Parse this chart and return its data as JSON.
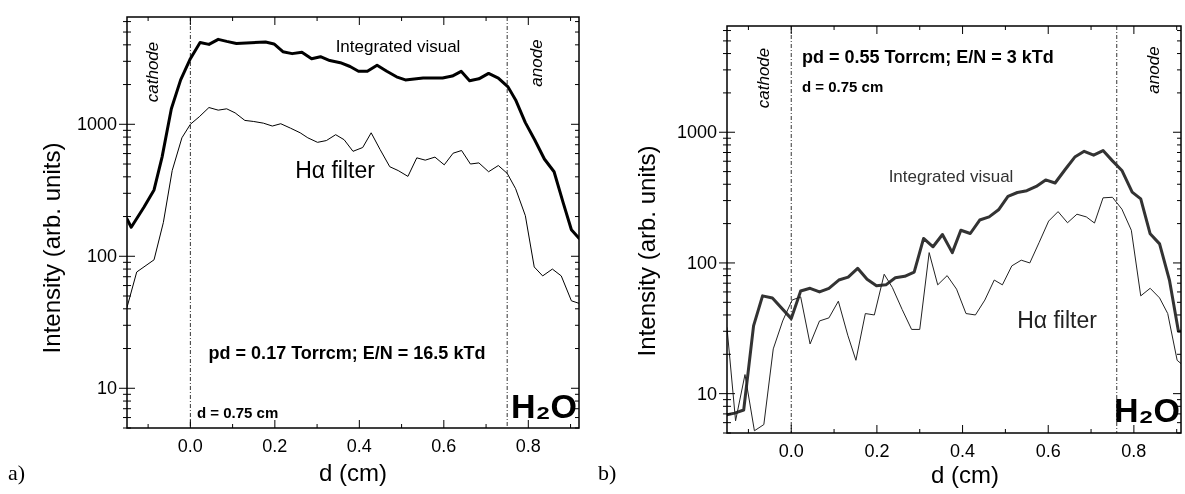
{
  "chart_data": [
    {
      "type": "line",
      "xlabel": "d (cm)",
      "ylabel": "Intensity  (arb. units)",
      "log": "y",
      "xlim": [
        -0.15,
        0.92
      ],
      "ylim": [
        5,
        6500
      ],
      "xticks": [
        {
          "value": -0.1,
          "label": null
        },
        {
          "value": 0,
          "label": "0.0"
        },
        {
          "value": 0.1,
          "label": null
        },
        {
          "value": 0.2,
          "label": "0.2"
        },
        {
          "value": 0.3,
          "label": null
        },
        {
          "value": 0.4,
          "label": "0.4"
        },
        {
          "value": 0.5,
          "label": null
        },
        {
          "value": 0.6,
          "label": "0.6"
        },
        {
          "value": 0.7,
          "label": null
        },
        {
          "value": 0.8,
          "label": "0.8"
        },
        {
          "value": 0.9,
          "label": null
        }
      ],
      "yticks": [
        {
          "value": 5,
          "label": null
        },
        {
          "value": 6,
          "label": null
        },
        {
          "value": 7,
          "label": null
        },
        {
          "value": 8,
          "label": null
        },
        {
          "value": 9,
          "label": null
        },
        10,
        {
          "value": 20,
          "label": null
        },
        {
          "value": 30,
          "label": null
        },
        {
          "value": 40,
          "label": null
        },
        {
          "value": 50,
          "label": null
        },
        {
          "value": 60,
          "label": null
        },
        {
          "value": 70,
          "label": null
        },
        {
          "value": 80,
          "label": null
        },
        {
          "value": 90,
          "label": null
        },
        100,
        {
          "value": 200,
          "label": null
        },
        {
          "value": 300,
          "label": null
        },
        {
          "value": 400,
          "label": null
        },
        {
          "value": 500,
          "label": null
        },
        {
          "value": 600,
          "label": null
        },
        {
          "value": 700,
          "label": null
        },
        {
          "value": 800,
          "label": null
        },
        {
          "value": 900,
          "label": null
        },
        1000,
        {
          "value": 2000,
          "label": null
        },
        {
          "value": 3000,
          "label": null
        },
        {
          "value": 4000,
          "label": null
        },
        {
          "value": 5000,
          "label": null
        },
        {
          "value": 6000,
          "label": null
        }
      ],
      "grid": false,
      "marker": "none",
      "line_style": "solid",
      "ref_lines": [
        {
          "axis": "x",
          "value": 0,
          "color": "#000000",
          "line_style": "dashed"
        },
        {
          "axis": "x",
          "value": 0.75,
          "color": "#000000",
          "line_style": "dashed"
        }
      ],
      "annotations": [
        "cathode",
        "anode",
        "pd = 0.17 Torrcm; E/N = 16.5 kTd",
        "d = 0.75 cm",
        "H₂O",
        "a)"
      ],
      "series": [
        {
          "name": "Integrated visual",
          "color": "#000000",
          "x": [
            -0.15,
            -0.14,
            -0.11,
            -0.086,
            -0.067,
            -0.045,
            -0.023,
            0,
            0.023,
            0.044,
            0.066,
            0.086,
            0.109,
            0.178,
            0.198,
            0.219,
            0.241,
            0.264,
            0.287,
            0.308,
            0.33,
            0.355,
            0.378,
            0.398,
            0.419,
            0.442,
            0.465,
            0.488,
            0.509,
            0.551,
            0.597,
            0.62,
            0.641,
            0.661,
            0.683,
            0.706,
            0.729,
            0.752,
            0.77,
            0.793,
            0.815,
            0.838,
            0.861,
            0.883,
            0.902,
            0.92
          ],
          "values": [
            192,
            166,
            235,
            318,
            564,
            1310,
            2170,
            3140,
            4170,
            4030,
            4400,
            4250,
            4100,
            4200,
            4060,
            3550,
            3430,
            3520,
            3140,
            3250,
            3040,
            2930,
            2740,
            2520,
            2520,
            2800,
            2520,
            2290,
            2170,
            2240,
            2240,
            2320,
            2520,
            2140,
            2210,
            2430,
            2240,
            1920,
            1530,
            1030,
            764,
            546,
            437,
            252,
            159,
            137
          ]
        },
        {
          "name": "Hα filter",
          "color": "#000000",
          "x": [
            -0.15,
            -0.127,
            -0.086,
            -0.064,
            -0.043,
            -0.02,
            0,
            0.021,
            0.044,
            0.066,
            0.086,
            0.106,
            0.129,
            0.15,
            0.173,
            0.194,
            0.214,
            0.237,
            0.26,
            0.278,
            0.301,
            0.322,
            0.344,
            0.364,
            0.385,
            0.408,
            0.428,
            0.449,
            0.472,
            0.492,
            0.515,
            0.536,
            0.556,
            0.579,
            0.601,
            0.622,
            0.642,
            0.663,
            0.683,
            0.706,
            0.729,
            0.75,
            0.77,
            0.793,
            0.814,
            0.834,
            0.857,
            0.878,
            0.902,
            0.92
          ],
          "values": [
            41,
            76,
            94,
            180,
            446,
            790,
            1000,
            1140,
            1340,
            1280,
            1310,
            1220,
            1070,
            1050,
            1020,
            970,
            1010,
            935,
            862,
            790,
            730,
            753,
            834,
            764,
            624,
            667,
            862,
            645,
            477,
            446,
            403,
            557,
            535,
            564,
            493,
            604,
            633,
            500,
            510,
            437,
            487,
            425,
            325,
            203,
            83,
            71,
            80,
            71,
            46,
            44
          ]
        }
      ]
    },
    {
      "type": "line",
      "xlabel": "d (cm)",
      "ylabel": "Intensity  (arb. units)",
      "log": "y",
      "xlim": [
        -0.15,
        0.91
      ],
      "ylim": [
        5,
        6500
      ],
      "xticks": [
        {
          "value": -0.1,
          "label": null
        },
        {
          "value": 0,
          "label": "0.0"
        },
        {
          "value": 0.1,
          "label": null
        },
        {
          "value": 0.2,
          "label": "0.2"
        },
        {
          "value": 0.3,
          "label": null
        },
        {
          "value": 0.4,
          "label": "0.4"
        },
        {
          "value": 0.5,
          "label": null
        },
        {
          "value": 0.6,
          "label": "0.6"
        },
        {
          "value": 0.7,
          "label": null
        },
        {
          "value": 0.8,
          "label": "0.8"
        },
        {
          "value": 0.9,
          "label": null
        }
      ],
      "yticks": [
        {
          "value": 5,
          "label": null
        },
        {
          "value": 6,
          "label": null
        },
        {
          "value": 7,
          "label": null
        },
        {
          "value": 8,
          "label": null
        },
        {
          "value": 9,
          "label": null
        },
        10,
        {
          "value": 20,
          "label": null
        },
        {
          "value": 30,
          "label": null
        },
        {
          "value": 40,
          "label": null
        },
        {
          "value": 50,
          "label": null
        },
        {
          "value": 60,
          "label": null
        },
        {
          "value": 70,
          "label": null
        },
        {
          "value": 80,
          "label": null
        },
        {
          "value": 90,
          "label": null
        },
        100,
        {
          "value": 200,
          "label": null
        },
        {
          "value": 300,
          "label": null
        },
        {
          "value": 400,
          "label": null
        },
        {
          "value": 500,
          "label": null
        },
        {
          "value": 600,
          "label": null
        },
        {
          "value": 700,
          "label": null
        },
        {
          "value": 800,
          "label": null
        },
        {
          "value": 900,
          "label": null
        },
        1000,
        {
          "value": 2000,
          "label": null
        },
        {
          "value": 3000,
          "label": null
        },
        {
          "value": 4000,
          "label": null
        },
        {
          "value": 5000,
          "label": null
        },
        {
          "value": 6000,
          "label": null
        }
      ],
      "grid": false,
      "marker": "none",
      "line_style": "solid",
      "ref_lines": [
        {
          "axis": "x",
          "value": 0,
          "color": "#000000",
          "line_style": "dashed"
        },
        {
          "axis": "x",
          "value": 0.76,
          "color": "#000000",
          "line_style": "dashed"
        }
      ],
      "annotations": [
        "cathode",
        "anode",
        "pd = 0.55 Torrcm; E/N = 3 kTd",
        "d = 0.75 cm",
        "H₂O",
        "b)"
      ],
      "series": [
        {
          "name": "Integrated visual",
          "color": "#333333",
          "x": [
            -0.15,
            -0.132,
            -0.111,
            -0.088,
            -0.067,
            -0.044,
            0,
            0.022,
            0.044,
            0.066,
            0.088,
            0.111,
            0.133,
            0.155,
            0.177,
            0.199,
            0.221,
            0.243,
            0.265,
            0.287,
            0.309,
            0.331,
            0.353,
            0.376,
            0.396,
            0.418,
            0.44,
            0.462,
            0.484,
            0.506,
            0.528,
            0.55,
            0.572,
            0.594,
            0.616,
            0.64,
            0.662,
            0.684,
            0.706,
            0.728,
            0.75,
            0.772,
            0.796,
            0.816,
            0.838,
            0.86,
            0.883,
            0.904,
            0.91
          ],
          "values": [
            6.9,
            7.1,
            7.5,
            33,
            56,
            54,
            37.5,
            61,
            64,
            60,
            64,
            74,
            78,
            91,
            75,
            67,
            68,
            77,
            79,
            85,
            154,
            133,
            165,
            120,
            178,
            168,
            213,
            225,
            255,
            323,
            346,
            357,
            385,
            432,
            409,
            521,
            646,
            715,
            668,
            724,
            604,
            510,
            348,
            309,
            167,
            140,
            74,
            30,
            30
          ]
        },
        {
          "name": "Hα filter",
          "color": "#222222",
          "x": [
            -0.15,
            -0.13,
            -0.108,
            -0.086,
            -0.064,
            -0.042,
            -0.02,
            0.002,
            0.022,
            0.044,
            0.066,
            0.088,
            0.11,
            0.132,
            0.151,
            0.173,
            0.194,
            0.217,
            0.236,
            0.259,
            0.281,
            0.3,
            0.322,
            0.342,
            0.364,
            0.386,
            0.408,
            0.43,
            0.452,
            0.474,
            0.493,
            0.515,
            0.537,
            0.557,
            0.579,
            0.601,
            0.623,
            0.645,
            0.667,
            0.689,
            0.708,
            0.728,
            0.75,
            0.772,
            0.794,
            0.816,
            0.838,
            0.86,
            0.879,
            0.901,
            0.91
          ],
          "values": [
            32,
            6.2,
            14,
            5.2,
            5.8,
            22,
            36,
            52,
            55,
            24,
            36,
            38,
            51,
            28,
            18,
            41,
            40,
            82,
            65,
            44,
            31,
            31,
            120,
            68,
            80,
            63,
            41,
            40,
            52,
            74,
            68,
            95,
            105,
            100,
            144,
            209,
            247,
            203,
            236,
            225,
            202,
            315,
            318,
            258,
            178,
            56,
            64,
            54,
            41,
            18,
            17
          ]
        }
      ]
    }
  ]
}
